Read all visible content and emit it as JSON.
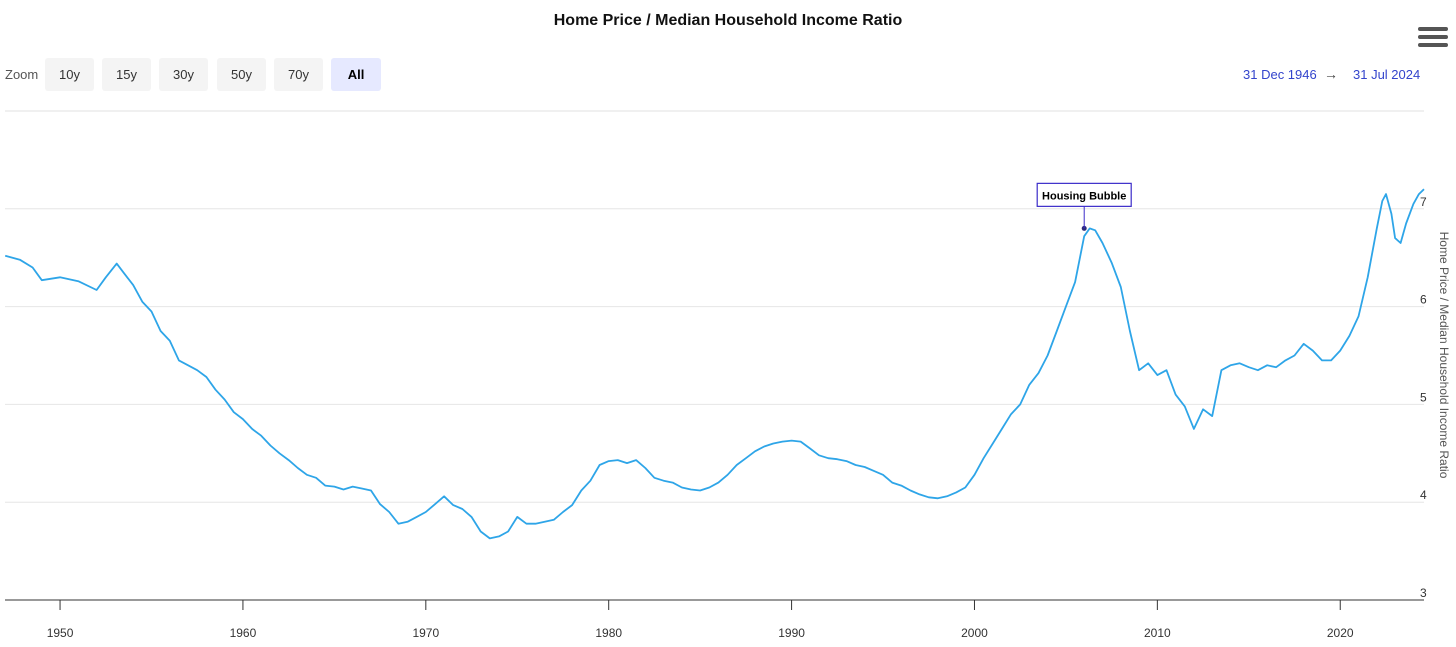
{
  "chart_data": {
    "type": "line",
    "title": "Home Price / Median Household Income Ratio",
    "ylabel": "Home Price / Median Household Income Ratio",
    "xlabel": "",
    "xlim": [
      1946.99,
      2024.58
    ],
    "ylim": [
      3,
      8
    ],
    "x_ticks": [
      "1950",
      "1960",
      "1970",
      "1980",
      "1990",
      "2000",
      "2010",
      "2020"
    ],
    "y_ticks": [
      "3",
      "4",
      "5",
      "6",
      "7"
    ],
    "grid": true,
    "line_color": "#2ea5e8",
    "series": [
      {
        "points": [
          [
            1947.0,
            6.52
          ],
          [
            1947.8,
            6.48
          ],
          [
            1948.5,
            6.4
          ],
          [
            1949.0,
            6.27
          ],
          [
            1950.0,
            6.3
          ],
          [
            1951.0,
            6.26
          ],
          [
            1952.0,
            6.17
          ],
          [
            1952.5,
            6.3
          ],
          [
            1953.1,
            6.44
          ],
          [
            1953.5,
            6.34
          ],
          [
            1954.0,
            6.22
          ],
          [
            1954.5,
            6.05
          ],
          [
            1955.0,
            5.95
          ],
          [
            1955.5,
            5.75
          ],
          [
            1956.0,
            5.65
          ],
          [
            1956.5,
            5.45
          ],
          [
            1957.0,
            5.4
          ],
          [
            1957.5,
            5.35
          ],
          [
            1958.0,
            5.28
          ],
          [
            1958.5,
            5.15
          ],
          [
            1959.0,
            5.05
          ],
          [
            1959.5,
            4.92
          ],
          [
            1960.0,
            4.85
          ],
          [
            1960.5,
            4.75
          ],
          [
            1961.0,
            4.68
          ],
          [
            1961.5,
            4.58
          ],
          [
            1962.0,
            4.5
          ],
          [
            1962.5,
            4.43
          ],
          [
            1963.0,
            4.35
          ],
          [
            1963.5,
            4.28
          ],
          [
            1964.0,
            4.25
          ],
          [
            1964.5,
            4.17
          ],
          [
            1965.0,
            4.16
          ],
          [
            1965.5,
            4.13
          ],
          [
            1966.0,
            4.16
          ],
          [
            1966.5,
            4.14
          ],
          [
            1967.0,
            4.12
          ],
          [
            1967.5,
            3.98
          ],
          [
            1968.0,
            3.9
          ],
          [
            1968.5,
            3.78
          ],
          [
            1969.0,
            3.8
          ],
          [
            1969.5,
            3.85
          ],
          [
            1970.0,
            3.9
          ],
          [
            1970.5,
            3.98
          ],
          [
            1971.0,
            4.06
          ],
          [
            1971.5,
            3.97
          ],
          [
            1972.0,
            3.93
          ],
          [
            1972.5,
            3.85
          ],
          [
            1973.0,
            3.7
          ],
          [
            1973.5,
            3.63
          ],
          [
            1974.0,
            3.65
          ],
          [
            1974.5,
            3.7
          ],
          [
            1975.0,
            3.85
          ],
          [
            1975.5,
            3.78
          ],
          [
            1976.0,
            3.78
          ],
          [
            1976.5,
            3.8
          ],
          [
            1977.0,
            3.82
          ],
          [
            1977.5,
            3.9
          ],
          [
            1978.0,
            3.97
          ],
          [
            1978.5,
            4.12
          ],
          [
            1979.0,
            4.22
          ],
          [
            1979.5,
            4.38
          ],
          [
            1980.0,
            4.42
          ],
          [
            1980.5,
            4.43
          ],
          [
            1981.0,
            4.4
          ],
          [
            1981.5,
            4.43
          ],
          [
            1982.0,
            4.35
          ],
          [
            1982.5,
            4.25
          ],
          [
            1983.0,
            4.22
          ],
          [
            1983.5,
            4.2
          ],
          [
            1984.0,
            4.15
          ],
          [
            1984.5,
            4.13
          ],
          [
            1985.0,
            4.12
          ],
          [
            1985.5,
            4.15
          ],
          [
            1986.0,
            4.2
          ],
          [
            1986.5,
            4.28
          ],
          [
            1987.0,
            4.38
          ],
          [
            1987.5,
            4.45
          ],
          [
            1988.0,
            4.52
          ],
          [
            1988.5,
            4.57
          ],
          [
            1989.0,
            4.6
          ],
          [
            1989.5,
            4.62
          ],
          [
            1990.0,
            4.63
          ],
          [
            1990.5,
            4.62
          ],
          [
            1991.0,
            4.55
          ],
          [
            1991.5,
            4.48
          ],
          [
            1992.0,
            4.45
          ],
          [
            1992.5,
            4.44
          ],
          [
            1993.0,
            4.42
          ],
          [
            1993.5,
            4.38
          ],
          [
            1994.0,
            4.36
          ],
          [
            1994.5,
            4.32
          ],
          [
            1995.0,
            4.28
          ],
          [
            1995.5,
            4.2
          ],
          [
            1996.0,
            4.17
          ],
          [
            1996.5,
            4.12
          ],
          [
            1997.0,
            4.08
          ],
          [
            1997.5,
            4.05
          ],
          [
            1998.0,
            4.04
          ],
          [
            1998.5,
            4.06
          ],
          [
            1999.0,
            4.1
          ],
          [
            1999.5,
            4.15
          ],
          [
            2000.0,
            4.28
          ],
          [
            2000.5,
            4.45
          ],
          [
            2001.0,
            4.6
          ],
          [
            2001.5,
            4.75
          ],
          [
            2002.0,
            4.9
          ],
          [
            2002.5,
            5.0
          ],
          [
            2003.0,
            5.2
          ],
          [
            2003.5,
            5.32
          ],
          [
            2004.0,
            5.5
          ],
          [
            2004.5,
            5.75
          ],
          [
            2005.0,
            6.0
          ],
          [
            2005.5,
            6.25
          ],
          [
            2006.0,
            6.72
          ],
          [
            2006.3,
            6.8
          ],
          [
            2006.6,
            6.78
          ],
          [
            2007.0,
            6.65
          ],
          [
            2007.5,
            6.45
          ],
          [
            2008.0,
            6.2
          ],
          [
            2008.5,
            5.75
          ],
          [
            2009.0,
            5.35
          ],
          [
            2009.5,
            5.42
          ],
          [
            2010.0,
            5.3
          ],
          [
            2010.5,
            5.35
          ],
          [
            2011.0,
            5.1
          ],
          [
            2011.5,
            4.98
          ],
          [
            2012.0,
            4.75
          ],
          [
            2012.5,
            4.95
          ],
          [
            2013.0,
            4.88
          ],
          [
            2013.5,
            5.35
          ],
          [
            2014.0,
            5.4
          ],
          [
            2014.5,
            5.42
          ],
          [
            2015.0,
            5.38
          ],
          [
            2015.5,
            5.35
          ],
          [
            2016.0,
            5.4
          ],
          [
            2016.5,
            5.38
          ],
          [
            2017.0,
            5.45
          ],
          [
            2017.5,
            5.5
          ],
          [
            2018.0,
            5.62
          ],
          [
            2018.5,
            5.55
          ],
          [
            2019.0,
            5.45
          ],
          [
            2019.5,
            5.45
          ],
          [
            2020.0,
            5.55
          ],
          [
            2020.5,
            5.7
          ],
          [
            2021.0,
            5.9
          ],
          [
            2021.5,
            6.3
          ],
          [
            2022.0,
            6.8
          ],
          [
            2022.3,
            7.08
          ],
          [
            2022.5,
            7.15
          ],
          [
            2022.8,
            6.95
          ],
          [
            2023.0,
            6.7
          ],
          [
            2023.3,
            6.65
          ],
          [
            2023.6,
            6.85
          ],
          [
            2024.0,
            7.05
          ],
          [
            2024.3,
            7.15
          ],
          [
            2024.58,
            7.2
          ]
        ]
      }
    ],
    "annotations": [
      {
        "text": "Housing Bubble",
        "x": 2006.0,
        "y": 6.8
      }
    ]
  },
  "zoom": {
    "label": "Zoom",
    "buttons": [
      "10y",
      "15y",
      "30y",
      "50y",
      "70y",
      "All"
    ],
    "active": "All"
  },
  "range": {
    "from": "31 Dec 1946",
    "arrow": "→",
    "to": "31 Jul 2024"
  }
}
